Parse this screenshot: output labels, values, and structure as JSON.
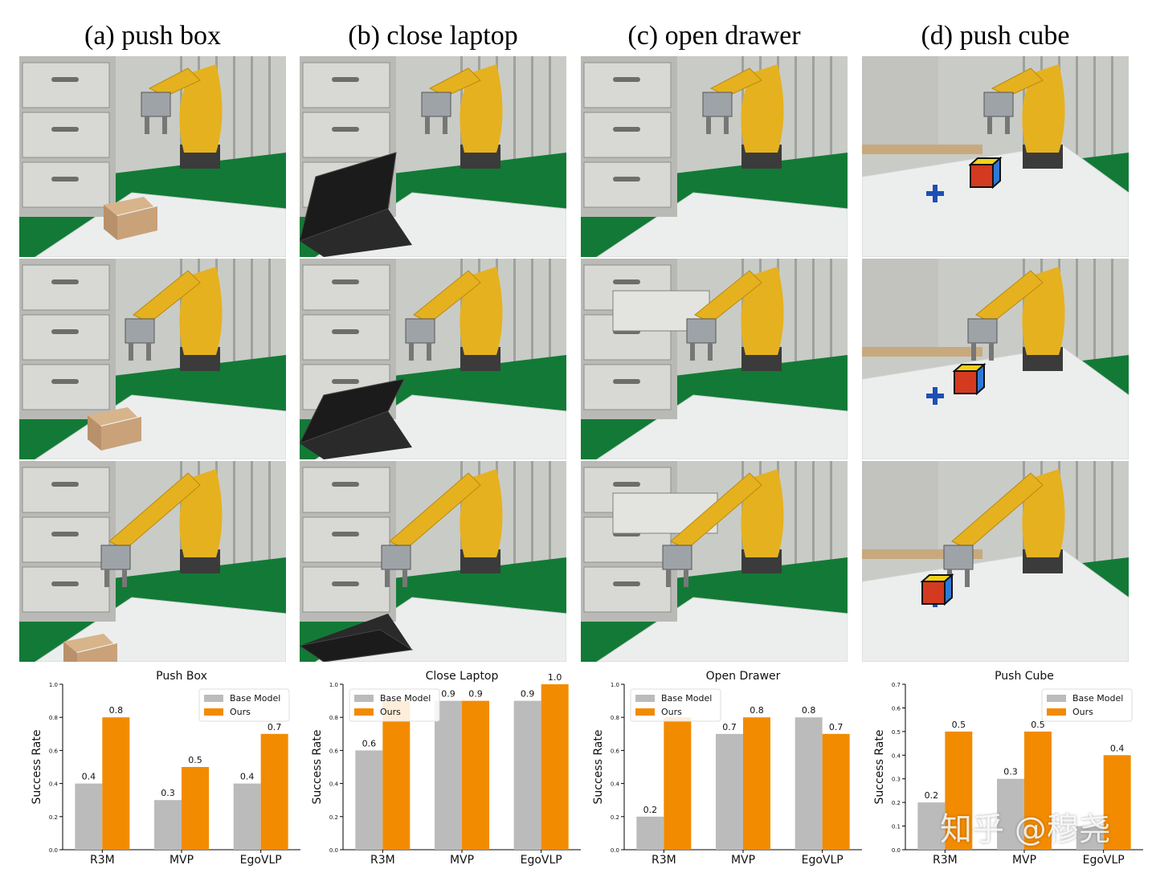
{
  "panels": [
    {
      "title": "(a) push box",
      "scene": "box"
    },
    {
      "title": "(b) close laptop",
      "scene": "laptop"
    },
    {
      "title": "(c) open drawer",
      "scene": "drawer"
    },
    {
      "title": "(d) push cube",
      "scene": "cube"
    }
  ],
  "colors": {
    "base": "#bbbbbb",
    "ours": "#f28b00",
    "robot": "#e6b11e",
    "cloth": "#127a36",
    "board": "#eceeee"
  },
  "watermark": "知乎 @穆尧",
  "chart_data": [
    {
      "type": "bar",
      "title": "Push Box",
      "categories": [
        "R3M",
        "MVP",
        "EgoVLP"
      ],
      "series": [
        {
          "name": "Base Model",
          "values": [
            0.4,
            0.3,
            0.4
          ]
        },
        {
          "name": "Ours",
          "values": [
            0.8,
            0.5,
            0.7
          ]
        }
      ],
      "data_labels": [
        [
          "0.4",
          "0.3",
          "0.4"
        ],
        [
          "0.8",
          "0.5",
          "0.7"
        ]
      ],
      "ylabel": "Success Rate",
      "ylim": [
        0,
        1.0
      ],
      "yticks": [
        "0.0",
        "0.2",
        "0.4",
        "0.6",
        "0.8",
        "1.0"
      ],
      "legend": "top-right",
      "grid": false
    },
    {
      "type": "bar",
      "title": "Close Laptop",
      "categories": [
        "R3M",
        "MVP",
        "EgoVLP"
      ],
      "series": [
        {
          "name": "Base Model",
          "values": [
            0.6,
            0.9,
            0.9
          ]
        },
        {
          "name": "Ours",
          "values": [
            0.9,
            0.9,
            1.0
          ]
        }
      ],
      "data_labels": [
        [
          "0.6",
          "0.9",
          "0.9"
        ],
        [
          "",
          "0.9",
          "1.0"
        ]
      ],
      "ylabel": "Success Rate",
      "ylim": [
        0,
        1.0
      ],
      "yticks": [
        "0.0",
        "0.2",
        "0.4",
        "0.6",
        "0.8",
        "1.0"
      ],
      "legend": "top-left",
      "grid": false
    },
    {
      "type": "bar",
      "title": "Open Drawer",
      "categories": [
        "R3M",
        "MVP",
        "EgoVLP"
      ],
      "series": [
        {
          "name": "Base Model",
          "values": [
            0.2,
            0.7,
            0.8
          ]
        },
        {
          "name": "Ours",
          "values": [
            0.8,
            0.8,
            0.7
          ]
        }
      ],
      "data_labels": [
        [
          "0.2",
          "0.7",
          "0.8"
        ],
        [
          "",
          "0.8",
          "0.7"
        ]
      ],
      "ylabel": "Success Rate",
      "ylim": [
        0,
        1.0
      ],
      "yticks": [
        "0.0",
        "0.2",
        "0.4",
        "0.6",
        "0.8",
        "1.0"
      ],
      "legend": "top-left",
      "grid": false
    },
    {
      "type": "bar",
      "title": "Push Cube",
      "categories": [
        "R3M",
        "MVP",
        "EgoVLP"
      ],
      "series": [
        {
          "name": "Base Model",
          "values": [
            0.2,
            0.3,
            0.1
          ]
        },
        {
          "name": "Ours",
          "values": [
            0.5,
            0.5,
            0.4
          ]
        }
      ],
      "data_labels": [
        [
          "0.2",
          "0.3",
          ""
        ],
        [
          "0.5",
          "0.5",
          "0.4"
        ]
      ],
      "ylabel": "Success Rate",
      "ylim": [
        0,
        0.7
      ],
      "yticks": [
        "0.0",
        "0.1",
        "0.2",
        "0.3",
        "0.4",
        "0.5",
        "0.6",
        "0.7"
      ],
      "legend": "top-right",
      "grid": false
    }
  ]
}
